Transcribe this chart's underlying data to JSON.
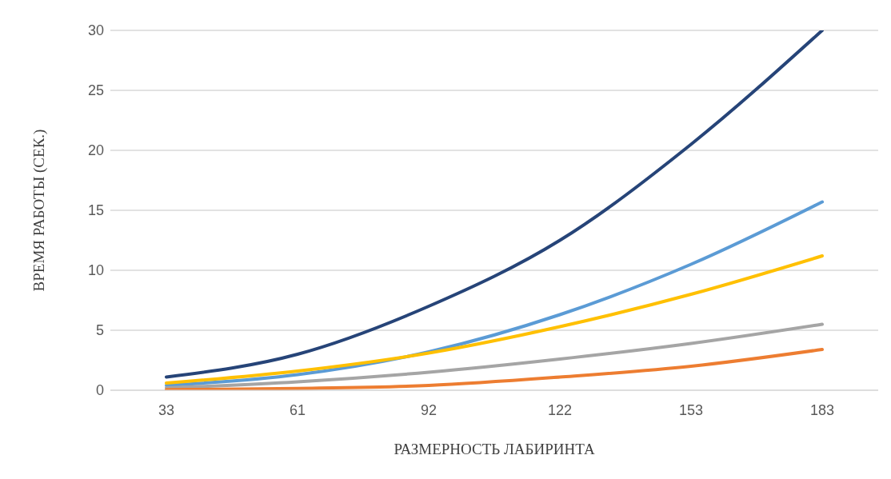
{
  "chart_data": {
    "type": "line",
    "xlabel": "РАЗМЕРНОСТЬ ЛАБИРИНТА",
    "ylabel": "ВРЕМЯ РАБОТЫ (СЕК.)",
    "categories": [
      "33",
      "61",
      "92",
      "122",
      "153",
      "183"
    ],
    "series": [
      {
        "color": "#264478",
        "values": [
          1.1,
          3.0,
          7.0,
          12.5,
          20.5,
          30
        ]
      },
      {
        "color": "#5b9bd5",
        "values": [
          0.4,
          1.3,
          3.2,
          6.3,
          10.5,
          15.7
        ]
      },
      {
        "color": "#ffc000",
        "values": [
          0.6,
          1.6,
          3.1,
          5.3,
          8.0,
          11.2
        ]
      },
      {
        "color": "#a5a5a5",
        "values": [
          0.2,
          0.7,
          1.5,
          2.6,
          3.9,
          5.5
        ]
      },
      {
        "color": "#ed7d31",
        "values": [
          0.05,
          0.15,
          0.4,
          1.1,
          2.0,
          3.4
        ]
      }
    ],
    "ylim": [
      0,
      30
    ],
    "yticks": [
      0,
      5,
      10,
      15,
      20,
      25,
      30
    ],
    "grid": "y",
    "legend": false,
    "marker": "none",
    "line_style": "solid"
  }
}
